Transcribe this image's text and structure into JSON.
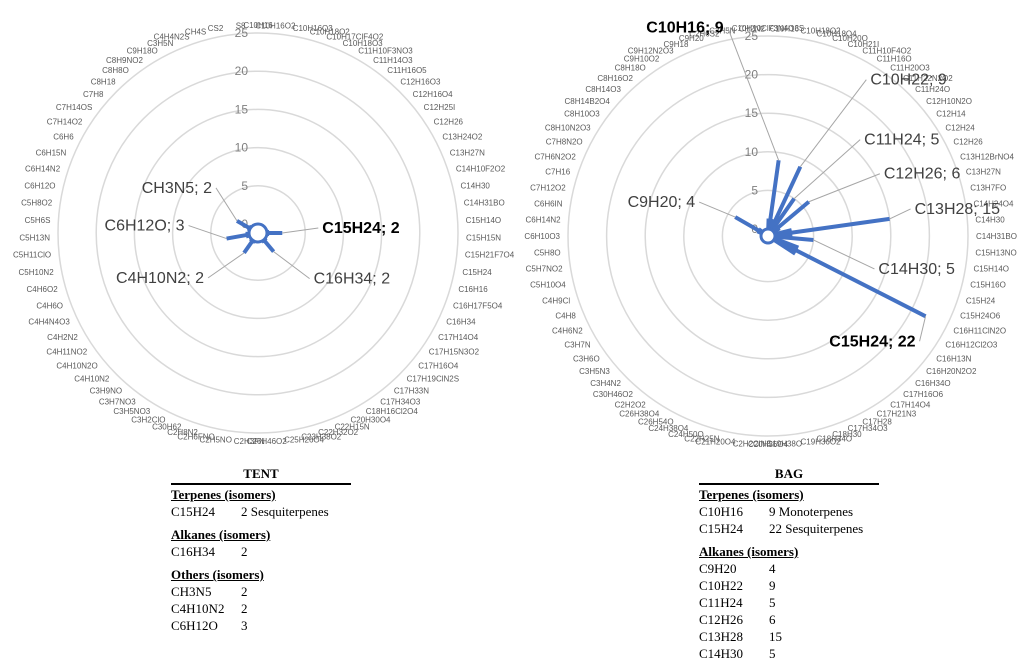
{
  "chart_data": [
    {
      "type": "radar",
      "title": "",
      "rlim": [
        0,
        25
      ],
      "rticks": [
        0,
        5,
        10,
        15,
        20,
        25
      ],
      "grid": "circular",
      "color": "#4472c4",
      "categories": [
        "C10H16",
        "C10H16O2",
        "C10H16O3",
        "C10H18O2",
        "C10H17ClF4O2",
        "C10H18O3",
        "C11H10F3NO3",
        "C11H14O3",
        "C11H16O5",
        "C12H16O3",
        "C12H16O4",
        "C12H25I",
        "C12H26",
        "C13H24O2",
        "C13H27N",
        "C14H10F2O2",
        "C14H30",
        "C14H31BO",
        "C15H14O",
        "C15H15N",
        "C15H21F7O4",
        "C15H24",
        "C16H16",
        "C16H17F5O4",
        "C16H34",
        "C17H14O4",
        "C17H15N3O2",
        "C17H16O4",
        "C17H19ClN2S",
        "C17H33N",
        "C17H34O3",
        "C18H16Cl2O4",
        "C20H30O4",
        "C22H15N",
        "C22H32O2",
        "C23H38O2",
        "C25H26O4",
        "C26H46O2",
        "C2H3FN",
        "C2H5NO",
        "C2H6FNO",
        "C2H8N2",
        "C30H62",
        "C3H2ClO",
        "C3H5NO3",
        "C3H7NO3",
        "C3H9NO",
        "C4H10N2",
        "C4H10N2O",
        "C4H11NO2",
        "C4H2N2",
        "C4H4N4O3",
        "C4H6O",
        "C4H6O2",
        "C5H10N2",
        "C5H11ClO",
        "C5H13N",
        "C5H6S",
        "C5H8O2",
        "C6H12O",
        "C6H14N2",
        "C6H15N",
        "C6H6",
        "C7H14O2",
        "C7H14OS",
        "C7H8",
        "C8H18",
        "C8H8O",
        "C8H9NO2",
        "C9H18O",
        "C3H5N",
        "C4H4N2S",
        "CH4S",
        "CS2",
        "S8"
      ],
      "values": {
        "C15H24": 2,
        "C16H34": 2,
        "CH3N5": 2,
        "C4H10N2": 2,
        "C6H12O": 3
      },
      "labels": [
        "C15H24; 2",
        "C16H34; 2",
        "CH3N5; 2",
        "C4H10N2; 2",
        "C6H12O; 3"
      ]
    },
    {
      "type": "radar",
      "title": "",
      "rlim": [
        0,
        25
      ],
      "rticks": [
        0,
        5,
        10,
        15,
        20,
        25
      ],
      "grid": "circular",
      "color": "#4472c4",
      "categories": [
        "C10H10ClF3N4O3S",
        "C10H16",
        "C10H18O2",
        "C10H18O4",
        "C10H20O",
        "C10H21I",
        "C11H10F4O2",
        "C11H16O",
        "C11H20O3",
        "C11H22N2O2",
        "C11H24O",
        "C12H10N2O",
        "C12H14",
        "C12H24",
        "C12H26",
        "C13H12BrNO4",
        "C13H27N",
        "C13H7FO",
        "C14H24O4",
        "C14H30",
        "C14H31BO",
        "C15H13NO",
        "C15H14O",
        "C15H16O",
        "C15H24",
        "C15H24O6",
        "C16H11ClN2O",
        "C16H12Cl2O3",
        "C16H13N",
        "C16H20N2O2",
        "C16H34O",
        "C17H16O6",
        "C17H14O4",
        "C17H21N3",
        "C17H28",
        "C17H34O3",
        "C18H30",
        "C18H34O",
        "C19H36O2",
        "C19H38O",
        "C20H36O4",
        "C2H2ClN3",
        "C21H20O4",
        "C22H25N",
        "C24H50O",
        "C24H38O4",
        "C26H54O",
        "C26H38O4",
        "C2H2O2",
        "C30H46O2",
        "C3H4N2",
        "C3H5N3",
        "C3H6O",
        "C3H7N",
        "C4H6N2",
        "C4H8",
        "C4H9Cl",
        "C5H10O4",
        "C5H7NO2",
        "C5H8O",
        "C6H10O3",
        "C6H14N2",
        "C6H6IN",
        "C7H12O2",
        "C7H16",
        "C7H6N2O2",
        "C7H8N2O",
        "C8H10N2O3",
        "C8H10O3",
        "C8H14B2O4",
        "C8H14O3",
        "C8H16O2",
        "C8H18O",
        "C9H10O2",
        "C9H12N2O3",
        "C9H18",
        "C9H20",
        "C2H6S2",
        "C3H5N",
        "CH2N2"
      ],
      "values": {
        "C10H16": 9,
        "C10H22": 9,
        "C11H24": 5,
        "C12H26": 6,
        "C13H28": 15,
        "C14H30": 5,
        "C15H24": 22,
        "C9H20": 4
      },
      "labels": [
        "C10H16; 9",
        "C10H22; 9",
        "C11H24; 5",
        "C12H26; 6",
        "C13H28; 15",
        "C14H30; 5",
        "C15H24; 22",
        "C9H20; 4"
      ]
    }
  ],
  "tables": {
    "tent": {
      "title": "TENT",
      "sections": [
        {
          "heading": "Terpenes (isomers)",
          "rows": [
            [
              "C15H24",
              "2 Sesquiterpenes"
            ]
          ]
        },
        {
          "heading": "Alkanes (isomers)",
          "rows": [
            [
              "C16H34",
              "2"
            ]
          ]
        },
        {
          "heading": "Others (isomers)",
          "rows": [
            [
              "CH3N5",
              "2"
            ],
            [
              "C4H10N2",
              "2"
            ],
            [
              "C6H12O",
              "3"
            ]
          ]
        }
      ]
    },
    "bag": {
      "title": "BAG",
      "sections": [
        {
          "heading": "Terpenes (isomers)",
          "rows": [
            [
              "C10H16",
              "9 Monoterpenes"
            ],
            [
              "C15H24",
              "22 Sesquiterpenes"
            ]
          ]
        },
        {
          "heading": "Alkanes (isomers)",
          "rows": [
            [
              "C9H20",
              "4"
            ],
            [
              "C10H22",
              "9"
            ],
            [
              "C11H24",
              "5"
            ],
            [
              "C12H26",
              "6"
            ],
            [
              "C13H28",
              "15"
            ],
            [
              "C14H30",
              "5"
            ]
          ]
        }
      ]
    }
  }
}
